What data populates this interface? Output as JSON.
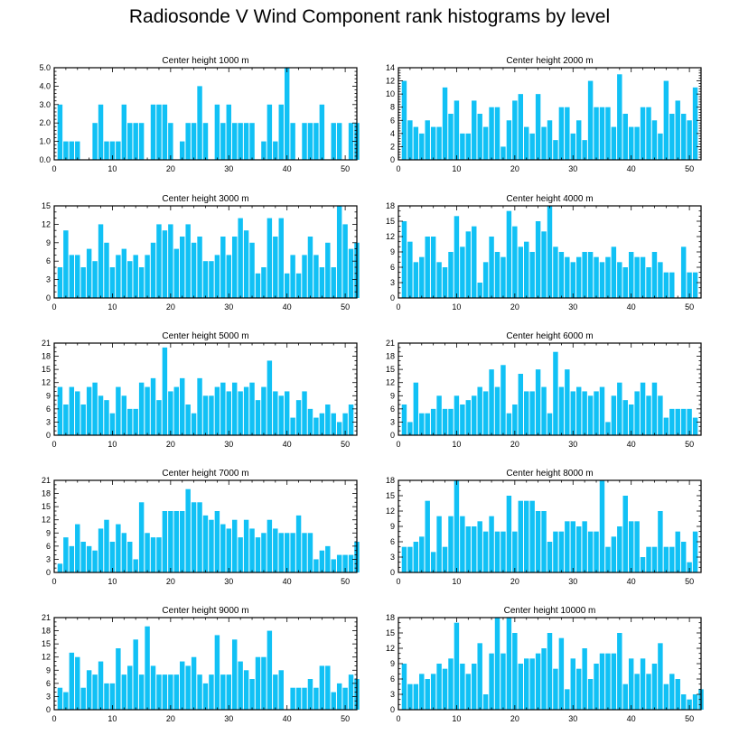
{
  "title": "Radiosonde V Wind Component rank histograms by level",
  "colors": {
    "bar": "#11c1f5",
    "axis": "#000000",
    "background": "#ffffff"
  },
  "chart_data": [
    {
      "type": "bar",
      "title": "Center height 1000 m",
      "xlim": [
        0,
        52
      ],
      "ylim": [
        0,
        5
      ],
      "xticks": [
        0,
        10,
        20,
        30,
        40,
        50
      ],
      "yticks": [
        0,
        1,
        2,
        3,
        4,
        5
      ],
      "ytick_labels": [
        "0.0",
        "1.0",
        "2.0",
        "3.0",
        "4.0",
        "5.0"
      ],
      "values": [
        3,
        1,
        1,
        1,
        0,
        0,
        2,
        3,
        1,
        1,
        1,
        3,
        2,
        2,
        2,
        0,
        3,
        3,
        3,
        2,
        0,
        1,
        2,
        2,
        4,
        2,
        0,
        3,
        2,
        3,
        2,
        2,
        2,
        2,
        0,
        1,
        3,
        1,
        3,
        5,
        2,
        0,
        2,
        2,
        2,
        3,
        0,
        2,
        2,
        0,
        2,
        2
      ]
    },
    {
      "type": "bar",
      "title": "Center height 2000 m",
      "xlim": [
        0,
        52
      ],
      "ylim": [
        0,
        14
      ],
      "xticks": [
        0,
        10,
        20,
        30,
        40,
        50
      ],
      "yticks": [
        0,
        2,
        4,
        6,
        8,
        10,
        12,
        14
      ],
      "ytick_labels": [
        "0",
        "2",
        "4",
        "6",
        "8",
        "10",
        "12",
        "14"
      ],
      "values": [
        12,
        6,
        5,
        4,
        6,
        5,
        5,
        11,
        7,
        9,
        4,
        4,
        9,
        7,
        5,
        8,
        8,
        2,
        6,
        9,
        10,
        5,
        4,
        10,
        5,
        6,
        3,
        8,
        8,
        4,
        6,
        3,
        12,
        8,
        8,
        8,
        5,
        13,
        7,
        5,
        5,
        8,
        8,
        6,
        4,
        12,
        7,
        9,
        7,
        6,
        11,
        0
      ]
    },
    {
      "type": "bar",
      "title": "Center height 3000 m",
      "xlim": [
        0,
        52
      ],
      "ylim": [
        0,
        15
      ],
      "xticks": [
        0,
        10,
        20,
        30,
        40,
        50
      ],
      "yticks": [
        0,
        3,
        6,
        9,
        12,
        15
      ],
      "ytick_labels": [
        "0",
        "3",
        "6",
        "9",
        "12",
        "15"
      ],
      "values": [
        5,
        11,
        7,
        7,
        5,
        8,
        6,
        12,
        9,
        5,
        7,
        8,
        6,
        7,
        5,
        7,
        9,
        12,
        11,
        12,
        8,
        10,
        12,
        9,
        10,
        6,
        6,
        7,
        10,
        7,
        10,
        13,
        11,
        9,
        4,
        5,
        13,
        10,
        13,
        4,
        7,
        4,
        7,
        10,
        7,
        5,
        9,
        5,
        15,
        12,
        8,
        9
      ]
    },
    {
      "type": "bar",
      "title": "Center height 4000 m",
      "xlim": [
        0,
        52
      ],
      "ylim": [
        0,
        18
      ],
      "xticks": [
        0,
        10,
        20,
        30,
        40,
        50
      ],
      "yticks": [
        0,
        3,
        6,
        9,
        12,
        15,
        18
      ],
      "ytick_labels": [
        "0",
        "3",
        "6",
        "9",
        "12",
        "15",
        "18"
      ],
      "values": [
        15,
        11,
        7,
        8,
        12,
        12,
        7,
        6,
        9,
        16,
        10,
        13,
        14,
        3,
        7,
        12,
        9,
        8,
        17,
        14,
        10,
        11,
        9,
        15,
        13,
        18,
        10,
        9,
        8,
        7,
        8,
        9,
        9,
        8,
        7,
        8,
        10,
        7,
        6,
        9,
        8,
        8,
        6,
        9,
        7,
        5,
        5,
        0,
        10,
        5,
        5,
        0
      ]
    },
    {
      "type": "bar",
      "title": "Center height 5000 m",
      "xlim": [
        0,
        52
      ],
      "ylim": [
        0,
        21
      ],
      "xticks": [
        0,
        10,
        20,
        30,
        40,
        50
      ],
      "yticks": [
        0,
        3,
        6,
        9,
        12,
        15,
        18,
        21
      ],
      "ytick_labels": [
        "0",
        "3",
        "6",
        "9",
        "12",
        "15",
        "18",
        "21"
      ],
      "values": [
        11,
        7,
        11,
        10,
        7,
        11,
        12,
        9,
        8,
        5,
        11,
        9,
        6,
        6,
        12,
        11,
        13,
        8,
        20,
        10,
        11,
        13,
        7,
        5,
        13,
        9,
        9,
        11,
        12,
        10,
        12,
        10,
        11,
        12,
        8,
        11,
        17,
        10,
        9,
        10,
        4,
        8,
        10,
        6,
        4,
        5,
        7,
        5,
        3,
        5,
        7,
        0
      ]
    },
    {
      "type": "bar",
      "title": "Center height 6000 m",
      "xlim": [
        0,
        52
      ],
      "ylim": [
        0,
        21
      ],
      "xticks": [
        0,
        10,
        20,
        30,
        40,
        50
      ],
      "yticks": [
        0,
        3,
        6,
        9,
        12,
        15,
        18,
        21
      ],
      "ytick_labels": [
        "0",
        "3",
        "6",
        "9",
        "12",
        "15",
        "18",
        "21"
      ],
      "values": [
        7,
        3,
        12,
        5,
        5,
        6,
        9,
        6,
        6,
        9,
        7,
        8,
        9,
        11,
        10,
        15,
        11,
        16,
        5,
        7,
        14,
        10,
        10,
        15,
        11,
        5,
        19,
        11,
        15,
        10,
        11,
        10,
        9,
        10,
        11,
        3,
        9,
        12,
        8,
        7,
        10,
        12,
        9,
        12,
        9,
        4,
        6,
        6,
        6,
        6,
        4,
        0
      ]
    },
    {
      "type": "bar",
      "title": "Center height 7000 m",
      "xlim": [
        0,
        52
      ],
      "ylim": [
        0,
        21
      ],
      "xticks": [
        0,
        10,
        20,
        30,
        40,
        50
      ],
      "yticks": [
        0,
        3,
        6,
        9,
        12,
        15,
        18,
        21
      ],
      "ytick_labels": [
        "0",
        "3",
        "6",
        "9",
        "12",
        "15",
        "18",
        "21"
      ],
      "values": [
        2,
        8,
        6,
        11,
        7,
        6,
        5,
        10,
        12,
        7,
        11,
        9,
        7,
        3,
        16,
        9,
        8,
        8,
        14,
        14,
        14,
        14,
        19,
        16,
        16,
        13,
        12,
        14,
        11,
        10,
        12,
        8,
        12,
        10,
        8,
        9,
        12,
        10,
        9,
        9,
        9,
        13,
        9,
        9,
        3,
        5,
        6,
        3,
        4,
        4,
        4,
        7
      ]
    },
    {
      "type": "bar",
      "title": "Center height 8000 m",
      "xlim": [
        0,
        52
      ],
      "ylim": [
        0,
        18
      ],
      "xticks": [
        0,
        10,
        20,
        30,
        40,
        50
      ],
      "yticks": [
        0,
        3,
        6,
        9,
        12,
        15,
        18
      ],
      "ytick_labels": [
        "0",
        "3",
        "6",
        "9",
        "12",
        "15",
        "18"
      ],
      "values": [
        5,
        5,
        6,
        7,
        14,
        4,
        11,
        5,
        11,
        18,
        11,
        9,
        9,
        10,
        8,
        11,
        8,
        8,
        15,
        8,
        14,
        14,
        14,
        12,
        12,
        6,
        8,
        8,
        10,
        10,
        9,
        10,
        8,
        8,
        18,
        5,
        7,
        9,
        15,
        10,
        10,
        3,
        5,
        5,
        12,
        5,
        5,
        8,
        6,
        2,
        8,
        0
      ]
    },
    {
      "type": "bar",
      "title": "Center height 9000 m",
      "xlim": [
        0,
        52
      ],
      "ylim": [
        0,
        21
      ],
      "xticks": [
        0,
        10,
        20,
        30,
        40,
        50
      ],
      "yticks": [
        0,
        3,
        6,
        9,
        12,
        15,
        18,
        21
      ],
      "ytick_labels": [
        "0",
        "3",
        "6",
        "9",
        "12",
        "15",
        "18",
        "21"
      ],
      "values": [
        5,
        4,
        13,
        12,
        5,
        9,
        8,
        11,
        6,
        6,
        14,
        8,
        10,
        16,
        8,
        19,
        10,
        8,
        8,
        8,
        8,
        11,
        10,
        12,
        8,
        6,
        8,
        17,
        8,
        8,
        16,
        11,
        9,
        7,
        12,
        12,
        18,
        8,
        9,
        0,
        5,
        5,
        5,
        7,
        5,
        10,
        10,
        4,
        6,
        5,
        8,
        7
      ]
    },
    {
      "type": "bar",
      "title": "Center height 10000 m",
      "xlim": [
        0,
        52
      ],
      "ylim": [
        0,
        18
      ],
      "xticks": [
        0,
        10,
        20,
        30,
        40,
        50
      ],
      "yticks": [
        0,
        3,
        6,
        9,
        12,
        15,
        18
      ],
      "ytick_labels": [
        "0",
        "3",
        "6",
        "9",
        "12",
        "15",
        "18"
      ],
      "values": [
        9,
        5,
        5,
        7,
        6,
        7,
        9,
        8,
        10,
        17,
        9,
        7,
        9,
        13,
        3,
        11,
        18,
        11,
        18,
        15,
        9,
        10,
        10,
        11,
        12,
        15,
        8,
        14,
        4,
        10,
        8,
        12,
        6,
        9,
        11,
        11,
        11,
        15,
        5,
        10,
        7,
        10,
        7,
        9,
        13,
        5,
        7,
        6,
        3,
        2,
        3,
        4
      ]
    }
  ]
}
